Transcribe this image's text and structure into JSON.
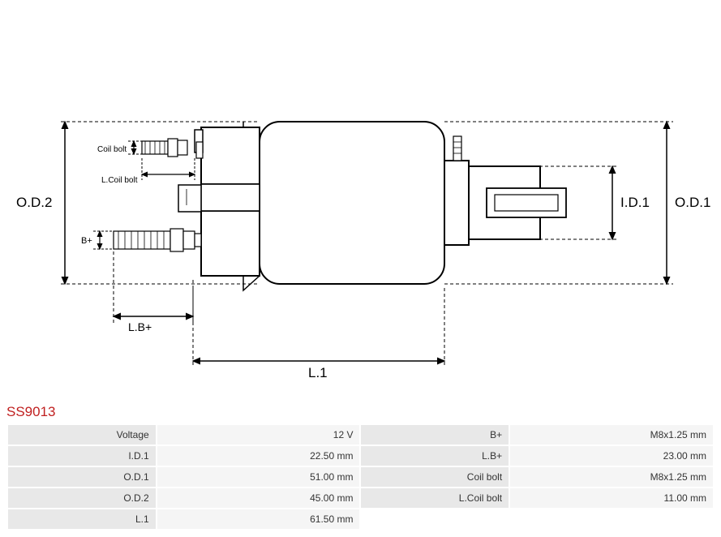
{
  "part_number": "SS9013",
  "part_number_color": "#c02020",
  "diagram": {
    "labels": {
      "od1": "O.D.1",
      "od2": "O.D.2",
      "id1": "I.D.1",
      "l1": "L.1",
      "lb_plus": "L.B+",
      "b_plus": "B+",
      "coil_bolt": "Coil bolt",
      "l_coil_bolt": "L.Coil bolt"
    },
    "stroke_color": "#000000",
    "fill_color": "#ffffff",
    "label_fontsize": 15,
    "small_label_fontsize": 10
  },
  "specs": {
    "rows": [
      {
        "label1": "Voltage",
        "value1": "12 V",
        "label2": "B+",
        "value2": "M8x1.25 mm"
      },
      {
        "label1": "I.D.1",
        "value1": "22.50 mm",
        "label2": "L.B+",
        "value2": "23.00 mm"
      },
      {
        "label1": "O.D.1",
        "value1": "51.00 mm",
        "label2": "Coil bolt",
        "value2": "M8x1.25 mm"
      },
      {
        "label1": "O.D.2",
        "value1": "45.00 mm",
        "label2": "L.Coil bolt",
        "value2": "11.00 mm"
      },
      {
        "label1": "L.1",
        "value1": "61.50 mm",
        "label2": "",
        "value2": ""
      }
    ],
    "label_bg": "#e8e8e8",
    "value_bg": "#f5f5f5",
    "text_color": "#333333",
    "fontsize": 12
  }
}
